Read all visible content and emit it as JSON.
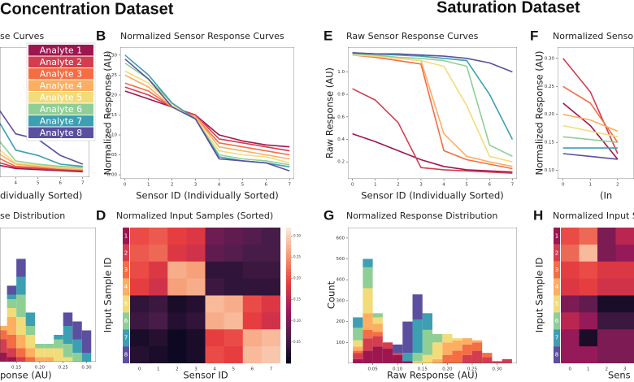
{
  "header": {
    "left": "Concentration Dataset",
    "right": "Saturation Dataset"
  },
  "chart_data": [
    {
      "type": "line",
      "title": "se Curves",
      "xlabel": "dividually Sorted)",
      "x": [
        3,
        4,
        5,
        6,
        7
      ],
      "xlim": [
        3.3,
        7.3
      ],
      "ylim": [
        0,
        1.2
      ],
      "xticks": [
        4,
        5,
        6,
        7
      ],
      "legend": "upper right",
      "series": [
        {
          "name": "Analyte 1",
          "color": "#9e1650",
          "values": [
            0.12,
            0.08,
            0.07,
            0.06,
            0.05
          ]
        },
        {
          "name": "Analyte 2",
          "color": "#d43d4f",
          "values": [
            0.15,
            0.09,
            0.08,
            0.07,
            0.06
          ]
        },
        {
          "name": "Analyte 3",
          "color": "#f46d43",
          "values": [
            0.2,
            0.1,
            0.09,
            0.08,
            0.07
          ]
        },
        {
          "name": "Analyte 4",
          "color": "#fdae61",
          "values": [
            0.25,
            0.12,
            0.1,
            0.08,
            0.07
          ]
        },
        {
          "name": "Analyte 5",
          "color": "#f2dc7a",
          "values": [
            0.3,
            0.13,
            0.11,
            0.09,
            0.08
          ]
        },
        {
          "name": "Analyte 6",
          "color": "#8fcf95",
          "values": [
            0.4,
            0.15,
            0.12,
            0.1,
            0.09
          ]
        },
        {
          "name": "Analyte 7",
          "color": "#3c9fb2",
          "values": [
            0.6,
            0.25,
            0.2,
            0.12,
            0.1
          ]
        },
        {
          "name": "Analyte 8",
          "color": "#5b4fa0",
          "values": [
            0.7,
            0.4,
            0.35,
            0.2,
            0.12
          ]
        }
      ]
    },
    {
      "type": "line",
      "letter": "B",
      "title": "Normalized Sensor Response Curves",
      "xlabel": "Sensor ID (Individually Sorted)",
      "ylabel": "Normalized Response (AU)",
      "x": [
        0,
        1,
        2,
        3,
        4,
        5,
        6,
        7
      ],
      "xlim": [
        -0.2,
        7.2
      ],
      "ylim": [
        -0.01,
        0.32
      ],
      "xticks": [
        0,
        1,
        2,
        3,
        4,
        5,
        6,
        7
      ],
      "yticks": [
        {
          "value": 0,
          "label": "0.00"
        },
        0.05,
        {
          "value": 0.1,
          "label": "0.10"
        },
        0.15,
        {
          "value": 0.2,
          "label": "0.20"
        },
        0.25,
        {
          "value": 0.3,
          "label": "0.30"
        }
      ],
      "series": [
        {
          "color": "#9e1650",
          "values": [
            0.21,
            0.19,
            0.17,
            0.15,
            0.1,
            0.085,
            0.075,
            0.07
          ]
        },
        {
          "color": "#d43d4f",
          "values": [
            0.22,
            0.2,
            0.17,
            0.15,
            0.09,
            0.08,
            0.07,
            0.06
          ]
        },
        {
          "color": "#f46d43",
          "values": [
            0.23,
            0.21,
            0.17,
            0.145,
            0.08,
            0.07,
            0.06,
            0.05
          ]
        },
        {
          "color": "#fdae61",
          "values": [
            0.25,
            0.22,
            0.17,
            0.145,
            0.07,
            0.06,
            0.05,
            0.04
          ]
        },
        {
          "color": "#f2dc7a",
          "values": [
            0.26,
            0.23,
            0.175,
            0.14,
            0.06,
            0.05,
            0.045,
            0.03
          ]
        },
        {
          "color": "#8fcf95",
          "values": [
            0.28,
            0.24,
            0.18,
            0.14,
            0.05,
            0.04,
            0.035,
            0.025
          ]
        },
        {
          "color": "#3c9fb2",
          "values": [
            0.3,
            0.25,
            0.18,
            0.14,
            0.045,
            0.035,
            0.03,
            0.02
          ]
        },
        {
          "color": "#5b4fa0",
          "values": [
            0.29,
            0.24,
            0.17,
            0.14,
            0.04,
            0.035,
            0.03,
            0.01
          ]
        }
      ]
    },
    {
      "type": "histogram",
      "title": "se Distribution",
      "xlabel": "ponse (AU)",
      "bins": [
        0.11,
        0.13,
        0.15,
        0.17,
        0.19,
        0.21,
        0.23,
        0.25,
        0.27,
        0.29,
        0.31
      ],
      "xlim": [
        0.115,
        0.32
      ],
      "ylim": [
        0,
        150
      ],
      "xticks": [
        0.15,
        {
          "value": 0.2,
          "label": "0.20"
        },
        0.25,
        {
          "value": 0.3,
          "label": "0.30"
        }
      ],
      "series": [
        {
          "color": "#9e1650",
          "values": [
            10,
            5,
            0,
            0,
            0,
            0,
            0,
            0,
            0,
            0
          ]
        },
        {
          "color": "#d43d4f",
          "values": [
            15,
            10,
            5,
            0,
            0,
            0,
            0,
            0,
            0,
            0
          ]
        },
        {
          "color": "#f46d43",
          "values": [
            10,
            15,
            10,
            5,
            0,
            0,
            0,
            0,
            0,
            0
          ]
        },
        {
          "color": "#fdae61",
          "values": [
            5,
            20,
            15,
            10,
            5,
            5,
            0,
            0,
            0,
            0
          ]
        },
        {
          "color": "#f2dc7a",
          "values": [
            0,
            10,
            20,
            15,
            10,
            10,
            15,
            5,
            0,
            0
          ]
        },
        {
          "color": "#8fcf95",
          "values": [
            0,
            10,
            25,
            10,
            5,
            5,
            10,
            15,
            10,
            0
          ]
        },
        {
          "color": "#3c9fb2",
          "values": [
            0,
            5,
            20,
            15,
            0,
            0,
            5,
            20,
            15,
            10
          ]
        },
        {
          "color": "#5b4fa0",
          "values": [
            0,
            10,
            20,
            0,
            0,
            0,
            0,
            15,
            20,
            25
          ]
        }
      ]
    },
    {
      "type": "heatmap",
      "letter": "D",
      "title": "Normalized Input Samples (Sorted)",
      "xlabel": "Sensor ID",
      "ylabel": "Input Sample ID",
      "x_categories": [
        "0",
        "1",
        "2",
        "3",
        "4",
        "5",
        "6",
        "7"
      ],
      "y_categories": [
        "1",
        "2",
        "3",
        "4",
        "5",
        "6",
        "7",
        "8"
      ],
      "row_colors": [
        "#9e1650",
        "#d43d4f",
        "#f46d43",
        "#fdae61",
        "#f2dc7a",
        "#8fcf95",
        "#3c9fb2",
        "#5b4fa0"
      ],
      "colormap": [
        "#03051a",
        "#4c1d4b",
        "#a11a5b",
        "#e83f3f",
        "#f69c73",
        "#faebdd"
      ],
      "zlim": [
        0,
        0.32
      ],
      "zticks": [
        0.05,
        {
          "value": 0.1,
          "label": "0.10"
        },
        0.15,
        {
          "value": 0.2,
          "label": "0.20"
        },
        0.25,
        {
          "value": 0.3,
          "label": "0.30"
        }
      ],
      "values": [
        [
          0.2,
          0.21,
          0.19,
          0.18,
          0.09,
          0.08,
          0.07,
          0.06
        ],
        [
          0.21,
          0.22,
          0.18,
          0.17,
          0.08,
          0.07,
          0.06,
          0.06
        ],
        [
          0.2,
          0.18,
          0.27,
          0.26,
          0.04,
          0.04,
          0.05,
          0.05
        ],
        [
          0.19,
          0.17,
          0.26,
          0.27,
          0.05,
          0.04,
          0.04,
          0.04
        ],
        [
          0.04,
          0.05,
          0.02,
          0.03,
          0.28,
          0.27,
          0.2,
          0.18
        ],
        [
          0.05,
          0.06,
          0.03,
          0.04,
          0.27,
          0.28,
          0.19,
          0.17
        ],
        [
          0.02,
          0.03,
          0.01,
          0.02,
          0.19,
          0.2,
          0.27,
          0.28
        ],
        [
          0.03,
          0.02,
          0.01,
          0.02,
          0.2,
          0.19,
          0.28,
          0.29
        ]
      ]
    },
    {
      "type": "line",
      "letter": "E",
      "title": "Raw Sensor Response Curves",
      "xlabel": "Sensor ID (Individually Sorted)",
      "ylabel": "Raw Response (AU)",
      "x": [
        0,
        1,
        2,
        3,
        4,
        5,
        6,
        7
      ],
      "xlim": [
        -0.2,
        7.2
      ],
      "ylim": [
        0.05,
        1.22
      ],
      "xticks": [
        0,
        1,
        2,
        3,
        4,
        5,
        6,
        7
      ],
      "yticks": [
        0.2,
        0.4,
        0.6,
        0.8,
        {
          "value": 1,
          "label": "1.0"
        }
      ],
      "series": [
        {
          "color": "#9e1650",
          "values": [
            0.45,
            0.38,
            0.3,
            0.22,
            0.16,
            0.13,
            0.12,
            0.11
          ]
        },
        {
          "color": "#d43d4f",
          "values": [
            0.85,
            0.75,
            0.55,
            0.15,
            0.13,
            0.12,
            0.11,
            0.1
          ]
        },
        {
          "color": "#f46d43",
          "values": [
            1.15,
            1.13,
            1.1,
            1.07,
            0.3,
            0.22,
            0.18,
            0.14
          ]
        },
        {
          "color": "#fdae61",
          "values": [
            1.15,
            1.14,
            1.12,
            1.1,
            0.45,
            0.25,
            0.2,
            0.16
          ]
        },
        {
          "color": "#f2dc7a",
          "values": [
            1.15,
            1.14,
            1.12,
            1.1,
            1.05,
            0.7,
            0.25,
            0.2
          ]
        },
        {
          "color": "#8fcf95",
          "values": [
            1.16,
            1.15,
            1.13,
            1.12,
            1.1,
            1.05,
            0.35,
            0.25
          ]
        },
        {
          "color": "#3c9fb2",
          "values": [
            1.17,
            1.16,
            1.15,
            1.14,
            1.12,
            1.1,
            0.8,
            0.4
          ]
        },
        {
          "color": "#5b4fa0",
          "values": [
            1.17,
            1.16,
            1.16,
            1.15,
            1.14,
            1.12,
            1.08,
            1
          ]
        }
      ]
    },
    {
      "type": "line",
      "letter": "F",
      "title": "Normalized Sensor",
      "xlabel": "(In",
      "ylabel": "Normalized Response (AU)",
      "x": [
        0,
        1,
        2
      ],
      "xlim": [
        -0.2,
        2.6
      ],
      "ylim": [
        0.085,
        0.32
      ],
      "xticks": [
        0,
        1,
        2
      ],
      "yticks": [
        {
          "value": 0.1,
          "label": "0.10"
        },
        0.15,
        {
          "value": 0.2,
          "label": "0.20"
        },
        0.25,
        {
          "value": 0.3,
          "label": "0.30"
        }
      ],
      "series": [
        {
          "color": "#9e1650",
          "values": [
            0.22,
            0.18,
            0.12
          ]
        },
        {
          "color": "#d43d4f",
          "values": [
            0.3,
            0.24,
            0.13
          ]
        },
        {
          "color": "#f46d43",
          "values": [
            0.25,
            0.22,
            0.15
          ]
        },
        {
          "color": "#fdae61",
          "values": [
            0.2,
            0.19,
            0.17
          ]
        },
        {
          "color": "#f2dc7a",
          "values": [
            0.18,
            0.17,
            0.16
          ]
        },
        {
          "color": "#8fcf95",
          "values": [
            0.16,
            0.155,
            0.15
          ]
        },
        {
          "color": "#3c9fb2",
          "values": [
            0.14,
            0.14,
            0.14
          ]
        },
        {
          "color": "#5b4fa0",
          "values": [
            0.13,
            0.125,
            0.12
          ]
        }
      ]
    },
    {
      "type": "histogram",
      "letter": "G",
      "title": "Normalized Response Distribution",
      "xlabel": "Raw Response (AU)",
      "ylabel": "Count",
      "bins": [
        0.01,
        0.03,
        0.05,
        0.07,
        0.09,
        0.11,
        0.13,
        0.15,
        0.17,
        0.19,
        0.21,
        0.23,
        0.25,
        0.27,
        0.29,
        0.31,
        0.33
      ],
      "xlim": [
        0,
        0.34
      ],
      "ylim": [
        0,
        650
      ],
      "xticks": [
        0.05,
        {
          "value": 0.1,
          "label": "0.10"
        },
        0.15,
        {
          "value": 0.2,
          "label": "0.20"
        },
        0.25,
        {
          "value": 0.3,
          "label": "0.30"
        }
      ],
      "yticks": [
        100,
        200,
        300,
        400,
        500,
        600
      ],
      "series": [
        {
          "color": "#9e1650",
          "values": [
            20,
            60,
            80,
            70,
            40,
            10,
            0,
            0,
            0,
            0,
            0,
            0,
            0,
            0,
            0,
            0
          ]
        },
        {
          "color": "#d43d4f",
          "values": [
            30,
            60,
            50,
            30,
            10,
            0,
            0,
            0,
            0,
            0,
            0,
            40,
            60,
            30,
            10,
            20
          ]
        },
        {
          "color": "#f46d43",
          "values": [
            10,
            40,
            20,
            0,
            0,
            0,
            0,
            0,
            0,
            40,
            60,
            50,
            40,
            20,
            0,
            0
          ]
        },
        {
          "color": "#fdae61",
          "values": [
            20,
            80,
            40,
            0,
            0,
            0,
            0,
            0,
            20,
            60,
            50,
            30,
            10,
            0,
            0,
            0
          ]
        },
        {
          "color": "#f2dc7a",
          "values": [
            30,
            120,
            30,
            0,
            0,
            0,
            10,
            40,
            80,
            40,
            10,
            0,
            0,
            0,
            0,
            0
          ]
        },
        {
          "color": "#8fcf95",
          "values": [
            60,
            100,
            20,
            0,
            0,
            0,
            40,
            120,
            40,
            0,
            0,
            0,
            0,
            0,
            0,
            0
          ]
        },
        {
          "color": "#3c9fb2",
          "values": [
            50,
            40,
            0,
            0,
            0,
            40,
            160,
            80,
            0,
            0,
            0,
            0,
            0,
            0,
            0,
            0
          ]
        },
        {
          "color": "#5b4fa0",
          "values": [
            0,
            0,
            0,
            0,
            40,
            150,
            120,
            0,
            0,
            0,
            0,
            0,
            0,
            0,
            0,
            0
          ]
        }
      ]
    },
    {
      "type": "heatmap",
      "letter": "H",
      "title": "Normalized Input S",
      "xlabel": "Sens",
      "ylabel": "Input Sample ID",
      "x_categories": [
        "0",
        "1",
        "2",
        "3"
      ],
      "y_categories": [
        "1",
        "2",
        "3",
        "4",
        "5",
        "6",
        "7",
        "8"
      ],
      "row_colors": [
        "#9e1650",
        "#d43d4f",
        "#f46d43",
        "#fdae61",
        "#f2dc7a",
        "#8fcf95",
        "#3c9fb2",
        "#5b4fa0"
      ],
      "colormap": [
        "#03051a",
        "#4c1d4b",
        "#a11a5b",
        "#e83f3f",
        "#f69c73",
        "#faebdd"
      ],
      "zlim": [
        0,
        0.32
      ],
      "values": [
        [
          0.2,
          0.22,
          0.1,
          0.15
        ],
        [
          0.22,
          0.28,
          0.1,
          0.12
        ],
        [
          0.19,
          0.2,
          0.18,
          0.18
        ],
        [
          0.18,
          0.19,
          0.17,
          0.17
        ],
        [
          0.1,
          0.08,
          0.02,
          0.02
        ],
        [
          0.15,
          0.12,
          0.05,
          0.05
        ],
        [
          0.12,
          0.02,
          0.1,
          0.1
        ],
        [
          0.12,
          0.12,
          0.1,
          0.1
        ]
      ]
    }
  ]
}
